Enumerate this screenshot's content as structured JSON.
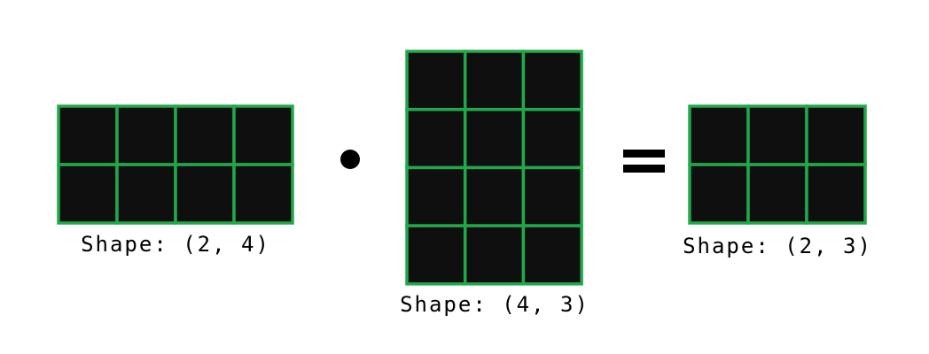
{
  "colors": {
    "cell_fill": "#0f0f0f",
    "cell_border": "#20a84a",
    "operator": "#000000",
    "text": "#000000"
  },
  "matrices": [
    {
      "rows": 2,
      "cols": 4,
      "label": "Shape: (2, 4)"
    },
    {
      "rows": 4,
      "cols": 3,
      "label": "Shape: (4, 3)"
    },
    {
      "rows": 2,
      "cols": 3,
      "label": "Shape: (2, 3)"
    }
  ],
  "operators": {
    "multiply": "dot-operator",
    "equals": "equals-operator"
  }
}
